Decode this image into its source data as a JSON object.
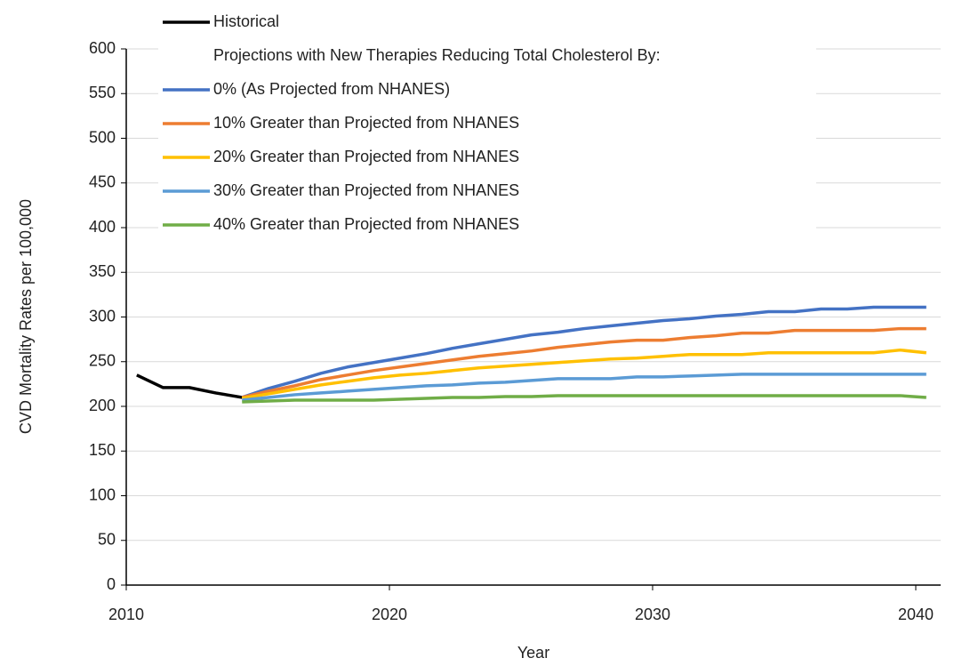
{
  "chart_data": {
    "type": "line",
    "x_label": "Year",
    "y_label": "CVD Mortality Rates per 100,000",
    "legend_title": "Projections with New Therapies Reducing Total Cholesterol By:",
    "xlim": [
      2010,
      2040
    ],
    "xticks": [
      2010,
      2020,
      2030,
      2040
    ],
    "ylim": [
      0,
      600
    ],
    "yticks": [
      0,
      50,
      100,
      150,
      200,
      250,
      300,
      350,
      400,
      450,
      500,
      550,
      600
    ],
    "grid": true,
    "legend": "top-left",
    "series": [
      {
        "name": "Historical",
        "color": "#000000",
        "x": [
          2010.4,
          2011.4,
          2012.4,
          2013.4,
          2014.4
        ],
        "values": [
          235,
          221,
          221,
          215,
          210
        ]
      },
      {
        "name": "0% (As Projected from NHANES)",
        "color": "#4472c4",
        "x": [
          2014.4,
          2015.4,
          2016.4,
          2017.4,
          2018.4,
          2019.4,
          2020.4,
          2021.4,
          2022.4,
          2023.4,
          2024.4,
          2025.4,
          2026.4,
          2027.4,
          2028.4,
          2029.4,
          2030.4,
          2031.4,
          2032.4,
          2033.4,
          2034.4,
          2035.4,
          2036.4,
          2037.4,
          2038.4,
          2039.4,
          2040.4
        ],
        "values": [
          210,
          220,
          228,
          237,
          244,
          249,
          254,
          259,
          265,
          270,
          275,
          280,
          283,
          287,
          290,
          293,
          296,
          298,
          301,
          303,
          306,
          306,
          309,
          309,
          311,
          311,
          311
        ]
      },
      {
        "name": "10% Greater than Projected from NHANES",
        "color": "#ed7d31",
        "x": [
          2014.4,
          2015.4,
          2016.4,
          2017.4,
          2018.4,
          2019.4,
          2020.4,
          2021.4,
          2022.4,
          2023.4,
          2024.4,
          2025.4,
          2026.4,
          2027.4,
          2028.4,
          2029.4,
          2030.4,
          2031.4,
          2032.4,
          2033.4,
          2034.4,
          2035.4,
          2036.4,
          2037.4,
          2038.4,
          2039.4,
          2040.4
        ],
        "values": [
          210,
          217,
          223,
          230,
          235,
          240,
          244,
          248,
          252,
          256,
          259,
          262,
          266,
          269,
          272,
          274,
          274,
          277,
          279,
          282,
          282,
          285,
          285,
          285,
          285,
          287,
          287
        ]
      },
      {
        "name": "20% Greater than Projected from NHANES",
        "color": "#ffc000",
        "x": [
          2014.4,
          2015.4,
          2016.4,
          2017.4,
          2018.4,
          2019.4,
          2020.4,
          2021.4,
          2022.4,
          2023.4,
          2024.4,
          2025.4,
          2026.4,
          2027.4,
          2028.4,
          2029.4,
          2030.4,
          2031.4,
          2032.4,
          2033.4,
          2034.4,
          2035.4,
          2036.4,
          2037.4,
          2038.4,
          2039.4,
          2040.4
        ],
        "values": [
          209,
          214,
          219,
          224,
          228,
          232,
          235,
          237,
          240,
          243,
          245,
          247,
          249,
          251,
          253,
          254,
          256,
          258,
          258,
          258,
          260,
          260,
          260,
          260,
          260,
          263,
          260
        ]
      },
      {
        "name": "30% Greater than Projected from NHANES",
        "color": "#5b9bd5",
        "x": [
          2014.4,
          2015.4,
          2016.4,
          2017.4,
          2018.4,
          2019.4,
          2020.4,
          2021.4,
          2022.4,
          2023.4,
          2024.4,
          2025.4,
          2026.4,
          2027.4,
          2028.4,
          2029.4,
          2030.4,
          2031.4,
          2032.4,
          2033.4,
          2034.4,
          2035.4,
          2036.4,
          2037.4,
          2038.4,
          2039.4,
          2040.4
        ],
        "values": [
          207,
          210,
          213,
          215,
          217,
          219,
          221,
          223,
          224,
          226,
          227,
          229,
          231,
          231,
          231,
          233,
          233,
          234,
          235,
          236,
          236,
          236,
          236,
          236,
          236,
          236,
          236
        ]
      },
      {
        "name": "40% Greater than Projected from NHANES",
        "color": "#70ad47",
        "x": [
          2014.4,
          2015.4,
          2016.4,
          2017.4,
          2018.4,
          2019.4,
          2020.4,
          2021.4,
          2022.4,
          2023.4,
          2024.4,
          2025.4,
          2026.4,
          2027.4,
          2028.4,
          2029.4,
          2030.4,
          2031.4,
          2032.4,
          2033.4,
          2034.4,
          2035.4,
          2036.4,
          2037.4,
          2038.4,
          2039.4,
          2040.4
        ],
        "values": [
          205,
          206,
          207,
          207,
          207,
          207,
          208,
          209,
          210,
          210,
          211,
          211,
          212,
          212,
          212,
          212,
          212,
          212,
          212,
          212,
          212,
          212,
          212,
          212,
          212,
          212,
          210
        ]
      }
    ]
  }
}
